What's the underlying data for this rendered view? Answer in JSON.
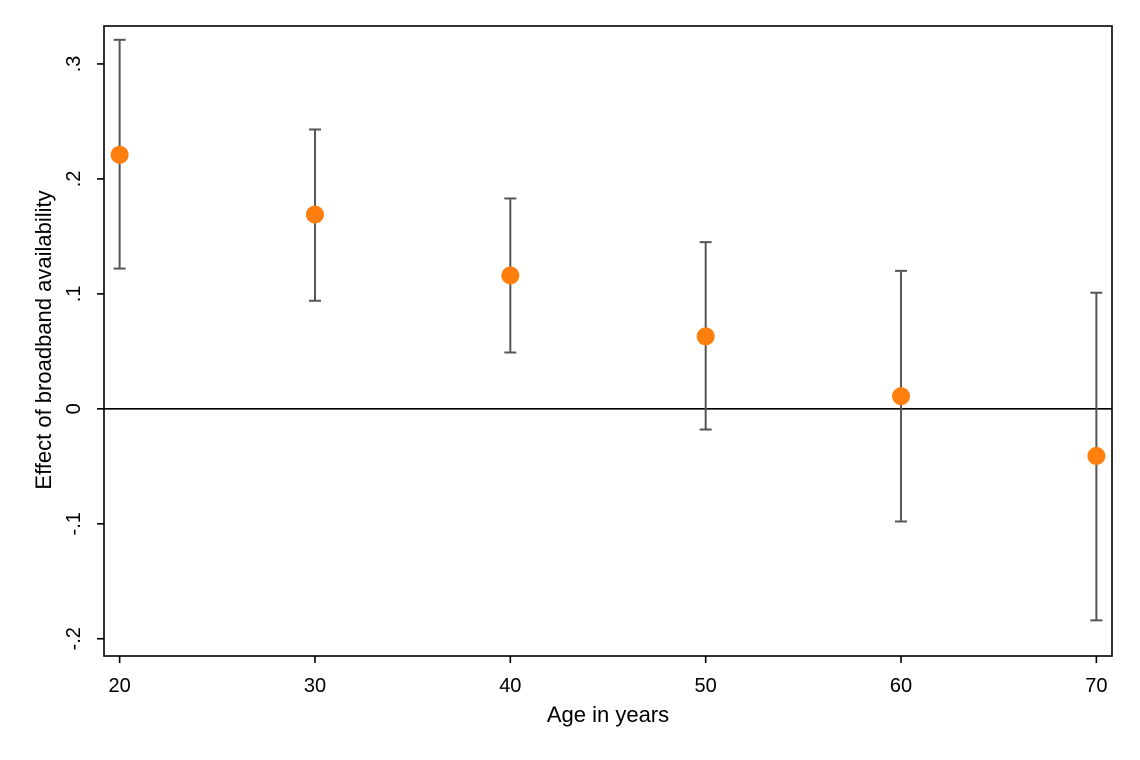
{
  "chart_data": {
    "type": "scatter",
    "xlabel": "Age in years",
    "ylabel": "Effect of broadband availability",
    "x_ticks": [
      20,
      30,
      40,
      50,
      60,
      70
    ],
    "x_tick_labels": [
      "20",
      "30",
      "40",
      "50",
      "60",
      "70"
    ],
    "y_ticks": [
      -0.2,
      -0.1,
      0,
      0.1,
      0.2,
      0.3
    ],
    "y_tick_labels": [
      "-.2",
      "-.1",
      "0",
      ".1",
      ".2",
      ".3"
    ],
    "xlim": [
      19.2,
      70.8
    ],
    "ylim": [
      -0.215,
      0.333
    ],
    "reference_line_y": 0,
    "grid": false,
    "marker_color": "#ff7f0e",
    "error_bar_color": "#555555",
    "points": [
      {
        "x": 20,
        "y": 0.221,
        "ci_low": 0.122,
        "ci_high": 0.321
      },
      {
        "x": 30,
        "y": 0.169,
        "ci_low": 0.094,
        "ci_high": 0.243
      },
      {
        "x": 40,
        "y": 0.116,
        "ci_low": 0.049,
        "ci_high": 0.183
      },
      {
        "x": 50,
        "y": 0.063,
        "ci_low": -0.018,
        "ci_high": 0.145
      },
      {
        "x": 60,
        "y": 0.011,
        "ci_low": -0.098,
        "ci_high": 0.12
      },
      {
        "x": 70,
        "y": -0.041,
        "ci_low": -0.184,
        "ci_high": 0.101
      }
    ]
  }
}
